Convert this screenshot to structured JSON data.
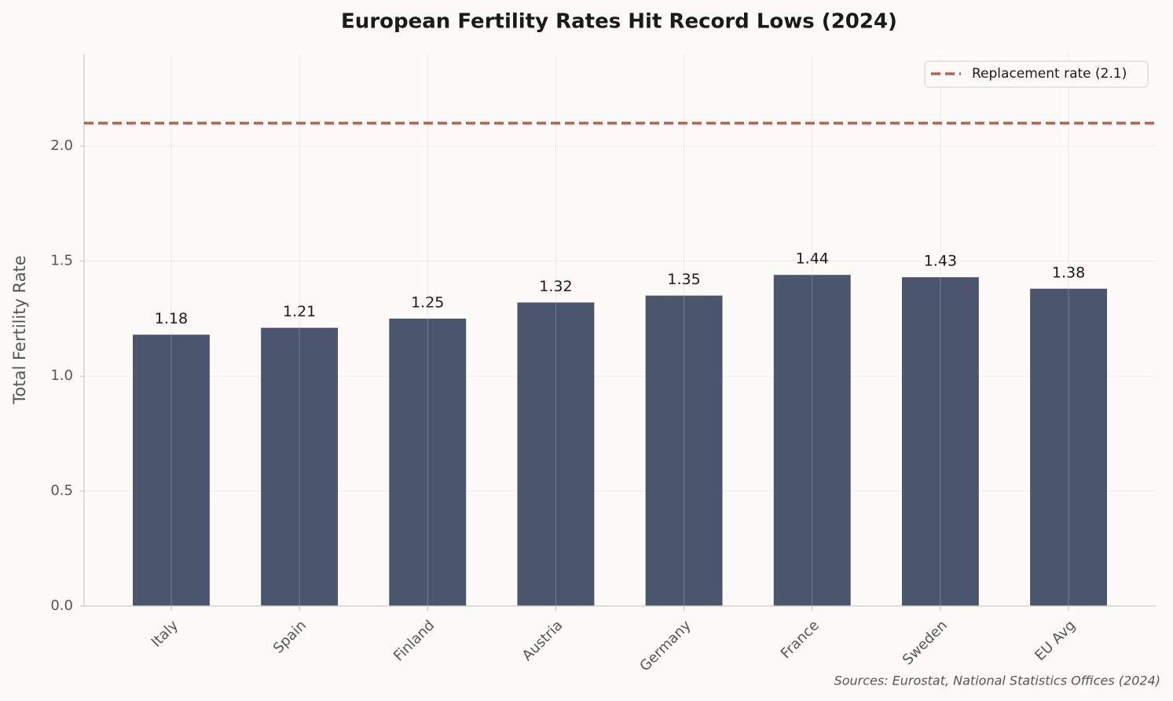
{
  "chart_data": {
    "type": "bar",
    "title": "European Fertility Rates Hit Record Lows (2024)",
    "ylabel": "Total Fertility Rate",
    "source": "Sources: Eurostat, National Statistics Offices (2024)",
    "categories": [
      "Italy",
      "Spain",
      "Finland",
      "Austria",
      "Germany",
      "France",
      "Sweden",
      "EU Avg"
    ],
    "values": [
      1.18,
      1.21,
      1.25,
      1.32,
      1.35,
      1.44,
      1.43,
      1.38
    ],
    "color": "#4b566e",
    "ylim": [
      0,
      2.4
    ],
    "yticks": [
      {
        "value": 0,
        "label": "0.0"
      },
      {
        "value": 0.5,
        "label": "0.5"
      },
      {
        "value": 1,
        "label": "1.0"
      },
      {
        "value": 1.5,
        "label": "1.5"
      },
      {
        "value": 2,
        "label": "2.0"
      }
    ],
    "grid": true,
    "reference_line": {
      "value": 2.1,
      "label": "Replacement rate (2.1)",
      "color": "#c0604a"
    },
    "legend": "upper right"
  }
}
